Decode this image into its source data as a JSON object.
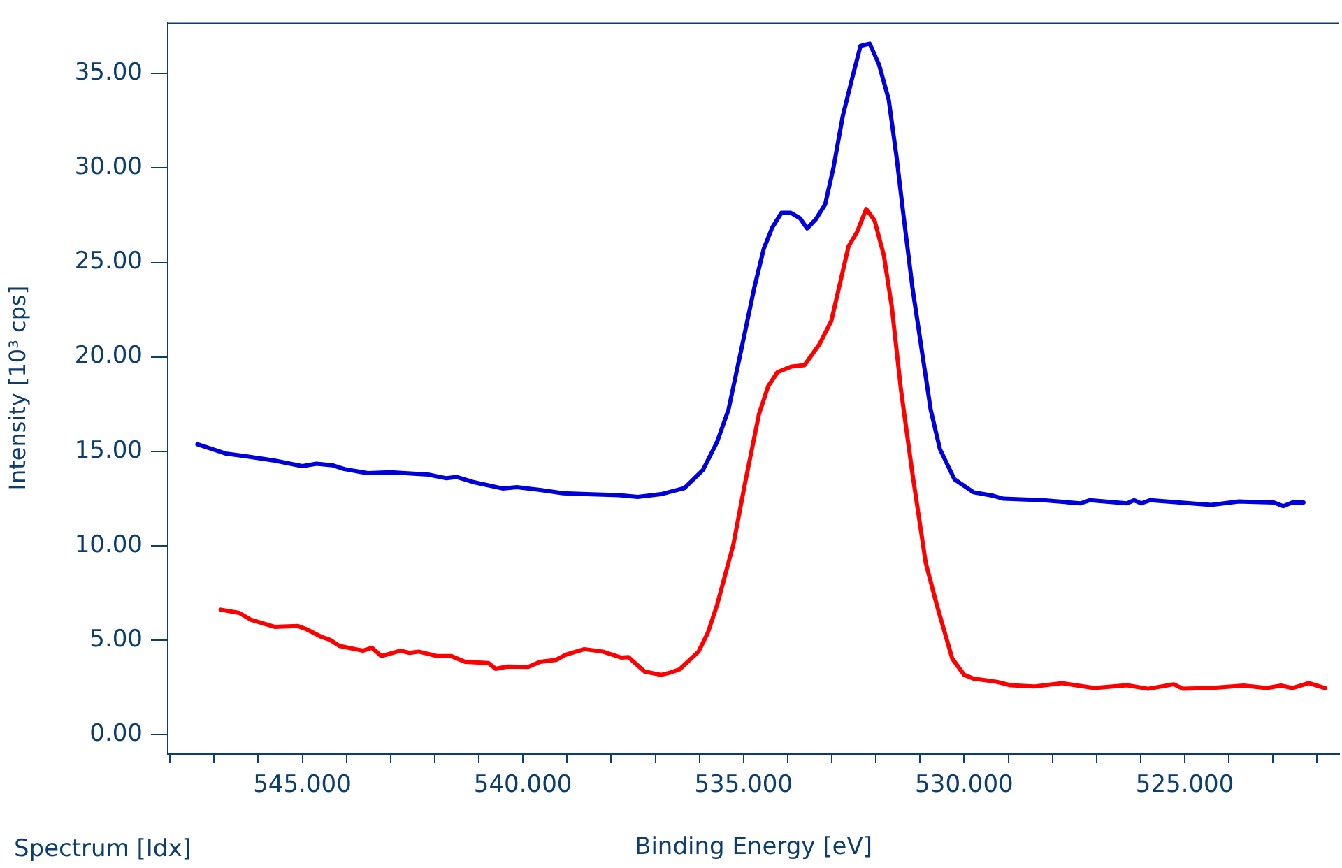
{
  "chart_data": {
    "type": "line",
    "xlabel": "Binding Energy [eV]",
    "ylabel": "Intensity [10³ cps]",
    "annotations": [
      "Spectrum [Idx]"
    ],
    "xlim": [
      548.05,
      521.5
    ],
    "ylim": [
      -1.0,
      37.7
    ],
    "xticks": [
      {
        "value": 548,
        "label": null
      },
      {
        "value": 547,
        "label": null
      },
      {
        "value": 546,
        "label": null
      },
      {
        "value": 545,
        "label": "545.000"
      },
      {
        "value": 544,
        "label": null
      },
      {
        "value": 543,
        "label": null
      },
      {
        "value": 542,
        "label": null
      },
      {
        "value": 541,
        "label": null
      },
      {
        "value": 540,
        "label": "540.000"
      },
      {
        "value": 539,
        "label": null
      },
      {
        "value": 538,
        "label": null
      },
      {
        "value": 537,
        "label": null
      },
      {
        "value": 536,
        "label": null
      },
      {
        "value": 535,
        "label": "535.000"
      },
      {
        "value": 534,
        "label": null
      },
      {
        "value": 533,
        "label": null
      },
      {
        "value": 532,
        "label": null
      },
      {
        "value": 531,
        "label": null
      },
      {
        "value": 530,
        "label": "530.000"
      },
      {
        "value": 529,
        "label": null
      },
      {
        "value": 528,
        "label": null
      },
      {
        "value": 527,
        "label": null
      },
      {
        "value": 526,
        "label": null
      },
      {
        "value": 525,
        "label": "525.000"
      },
      {
        "value": 524,
        "label": null
      },
      {
        "value": 523,
        "label": null
      },
      {
        "value": 522,
        "label": null
      }
    ],
    "yticks": [
      {
        "value": 0,
        "label": "0.00"
      },
      {
        "value": 5,
        "label": "5.00"
      },
      {
        "value": 10,
        "label": "10.00"
      },
      {
        "value": 15,
        "label": "15.00"
      },
      {
        "value": 20,
        "label": "20.00"
      },
      {
        "value": 25,
        "label": "25.00"
      },
      {
        "value": 30,
        "label": "30.00"
      },
      {
        "value": 35,
        "label": "35.00"
      }
    ],
    "grid": false,
    "legend": false,
    "marker": "none",
    "line_style": "solid",
    "series": [
      {
        "color": "#0000dd",
        "x": [
          547.38,
          546.74,
          546.32,
          545.63,
          545.0,
          544.68,
          544.32,
          544.05,
          543.52,
          543.0,
          542.15,
          541.73,
          541.51,
          541.09,
          540.46,
          540.14,
          539.61,
          539.09,
          538.56,
          537.82,
          537.4,
          536.87,
          536.66,
          536.34,
          535.92,
          535.6,
          535.34,
          535.07,
          534.76,
          534.54,
          534.35,
          534.14,
          533.93,
          533.72,
          533.56,
          533.36,
          533.15,
          532.96,
          532.75,
          532.54,
          532.35,
          532.14,
          531.93,
          531.71,
          531.53,
          531.38,
          531.17,
          530.95,
          530.76,
          530.55,
          530.22,
          529.79,
          529.37,
          529.11,
          528.21,
          527.36,
          527.15,
          526.31,
          526.15,
          525.99,
          525.78,
          524.4,
          523.77,
          522.98,
          522.77,
          522.56,
          522.31
        ],
        "values": [
          15.37,
          14.88,
          14.75,
          14.51,
          14.21,
          14.34,
          14.26,
          14.06,
          13.84,
          13.89,
          13.77,
          13.57,
          13.64,
          13.35,
          13.03,
          13.1,
          12.95,
          12.78,
          12.73,
          12.68,
          12.58,
          12.73,
          12.86,
          13.05,
          14.01,
          15.49,
          17.22,
          20.18,
          23.63,
          25.74,
          26.85,
          27.63,
          27.63,
          27.34,
          26.8,
          27.29,
          28.08,
          30.05,
          32.77,
          34.74,
          36.47,
          36.59,
          35.48,
          33.63,
          30.55,
          27.59,
          23.63,
          20.18,
          17.22,
          15.12,
          13.52,
          12.83,
          12.66,
          12.49,
          12.41,
          12.24,
          12.41,
          12.24,
          12.41,
          12.24,
          12.41,
          12.16,
          12.34,
          12.29,
          12.09,
          12.29,
          12.29
        ]
      },
      {
        "color": "#ff0000",
        "x": [
          546.85,
          546.43,
          546.16,
          545.63,
          545.11,
          544.9,
          544.58,
          544.37,
          544.16,
          543.63,
          543.42,
          543.21,
          542.78,
          542.57,
          542.36,
          541.94,
          541.62,
          541.31,
          540.78,
          540.62,
          540.35,
          539.88,
          539.61,
          539.25,
          539.03,
          538.61,
          538.19,
          537.77,
          537.61,
          537.24,
          536.87,
          536.66,
          536.45,
          536.02,
          535.81,
          535.6,
          535.23,
          534.97,
          534.65,
          534.44,
          534.23,
          533.91,
          533.62,
          533.28,
          533.01,
          532.62,
          532.43,
          532.22,
          532.03,
          531.82,
          531.64,
          531.43,
          531.17,
          530.87,
          530.62,
          530.27,
          530.0,
          529.79,
          529.26,
          528.95,
          528.42,
          527.78,
          527.47,
          527.05,
          526.31,
          525.83,
          525.25,
          525.04,
          524.4,
          523.67,
          523.14,
          522.82,
          522.56,
          522.19,
          521.82
        ],
        "values": [
          6.61,
          6.44,
          6.07,
          5.7,
          5.75,
          5.57,
          5.18,
          5.01,
          4.69,
          4.44,
          4.59,
          4.15,
          4.44,
          4.32,
          4.39,
          4.15,
          4.15,
          3.85,
          3.78,
          3.48,
          3.6,
          3.58,
          3.85,
          3.95,
          4.22,
          4.52,
          4.39,
          4.07,
          4.1,
          3.33,
          3.16,
          3.28,
          3.45,
          4.39,
          5.38,
          6.86,
          10.07,
          13.27,
          16.97,
          18.45,
          19.19,
          19.49,
          19.56,
          20.67,
          21.91,
          25.86,
          26.6,
          27.83,
          27.22,
          25.37,
          22.65,
          18.21,
          13.77,
          9.08,
          6.86,
          4.02,
          3.16,
          2.96,
          2.79,
          2.61,
          2.54,
          2.72,
          2.61,
          2.46,
          2.61,
          2.42,
          2.66,
          2.42,
          2.46,
          2.59,
          2.46,
          2.59,
          2.46,
          2.72,
          2.46
        ]
      }
    ]
  }
}
